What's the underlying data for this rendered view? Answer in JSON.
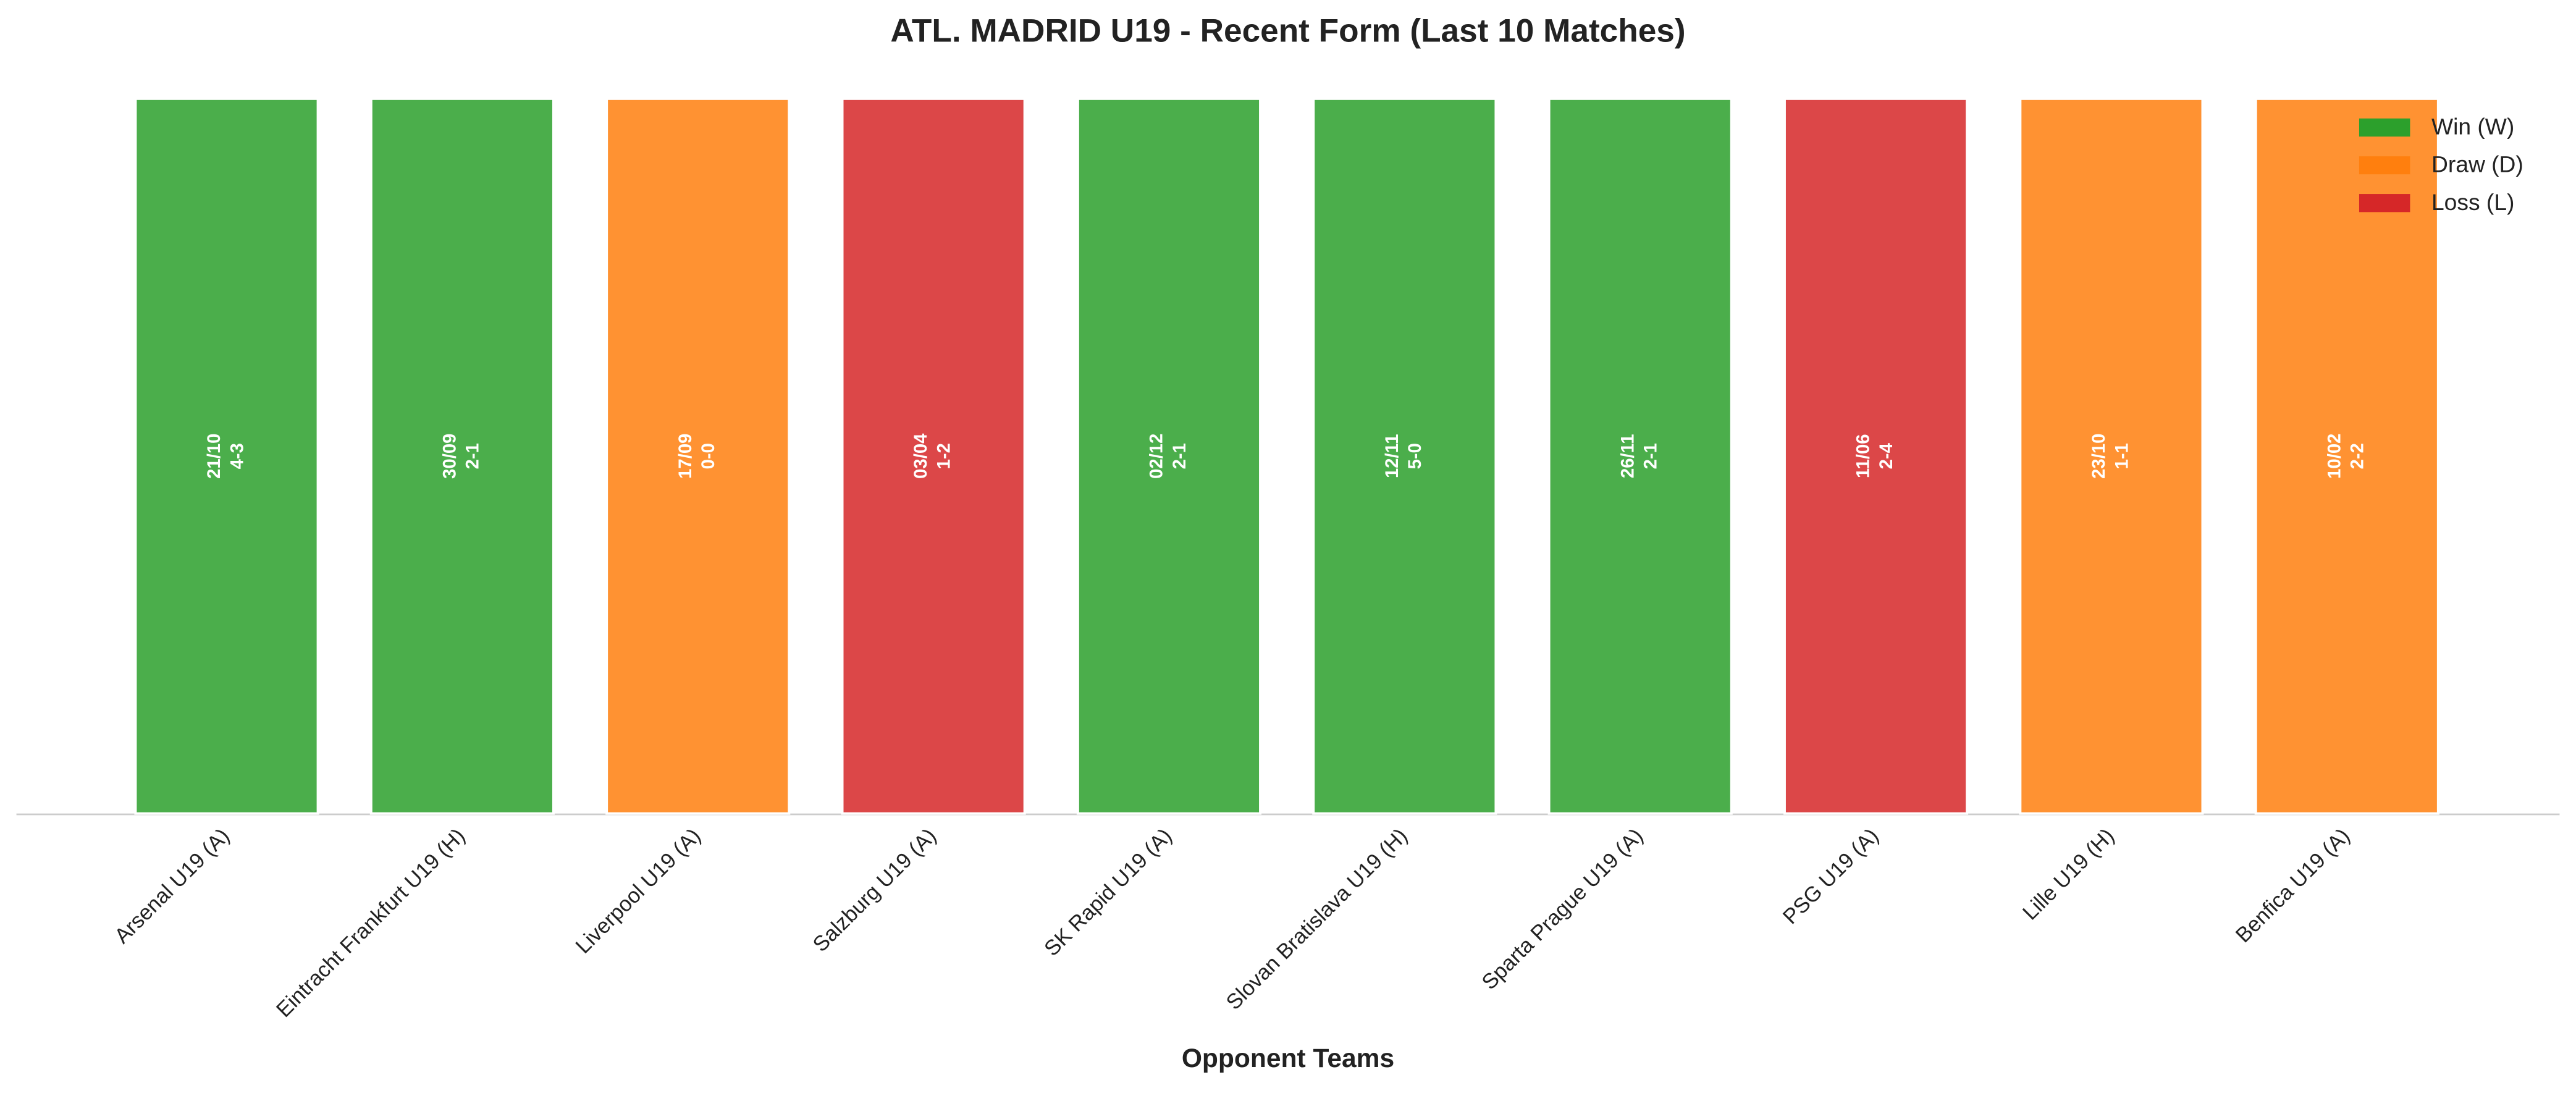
{
  "chart_data": {
    "type": "bar",
    "title": "ATL. MADRID U19 - Recent Form (Last 10 Matches)",
    "x_label": "Opponent Teams",
    "categories": [
      "Arsenal U19 (A)",
      "Eintracht Frankfurt U19 (H)",
      "Liverpool U19 (A)",
      "Salzburg U19 (A)",
      "SK Rapid U19 (A)",
      "Slovan Bratislava U19 (H)",
      "Sparta Prague U19 (A)",
      "PSG U19 (A)",
      "Lille U19 (H)",
      "Benfica U19 (A)"
    ],
    "results": [
      "W",
      "W",
      "D",
      "L",
      "W",
      "W",
      "W",
      "L",
      "D",
      "D"
    ],
    "dates": [
      "21/10",
      "30/09",
      "17/09",
      "03/04",
      "02/12",
      "12/11",
      "26/11",
      "11/06",
      "23/10",
      "10/02"
    ],
    "scores": [
      "4-3",
      "2-1",
      "0-0",
      "1-2",
      "2-1",
      "5-0",
      "2-1",
      "2-4",
      "1-1",
      "2-2"
    ],
    "legend_position": "upper right",
    "legend": [
      {
        "key": "W",
        "label": "Win (W)",
        "color": "#2ca02c"
      },
      {
        "key": "D",
        "label": "Draw (D)",
        "color": "#ff7f0e"
      },
      {
        "key": "L",
        "label": "Loss (L)",
        "color": "#d62728"
      }
    ]
  }
}
